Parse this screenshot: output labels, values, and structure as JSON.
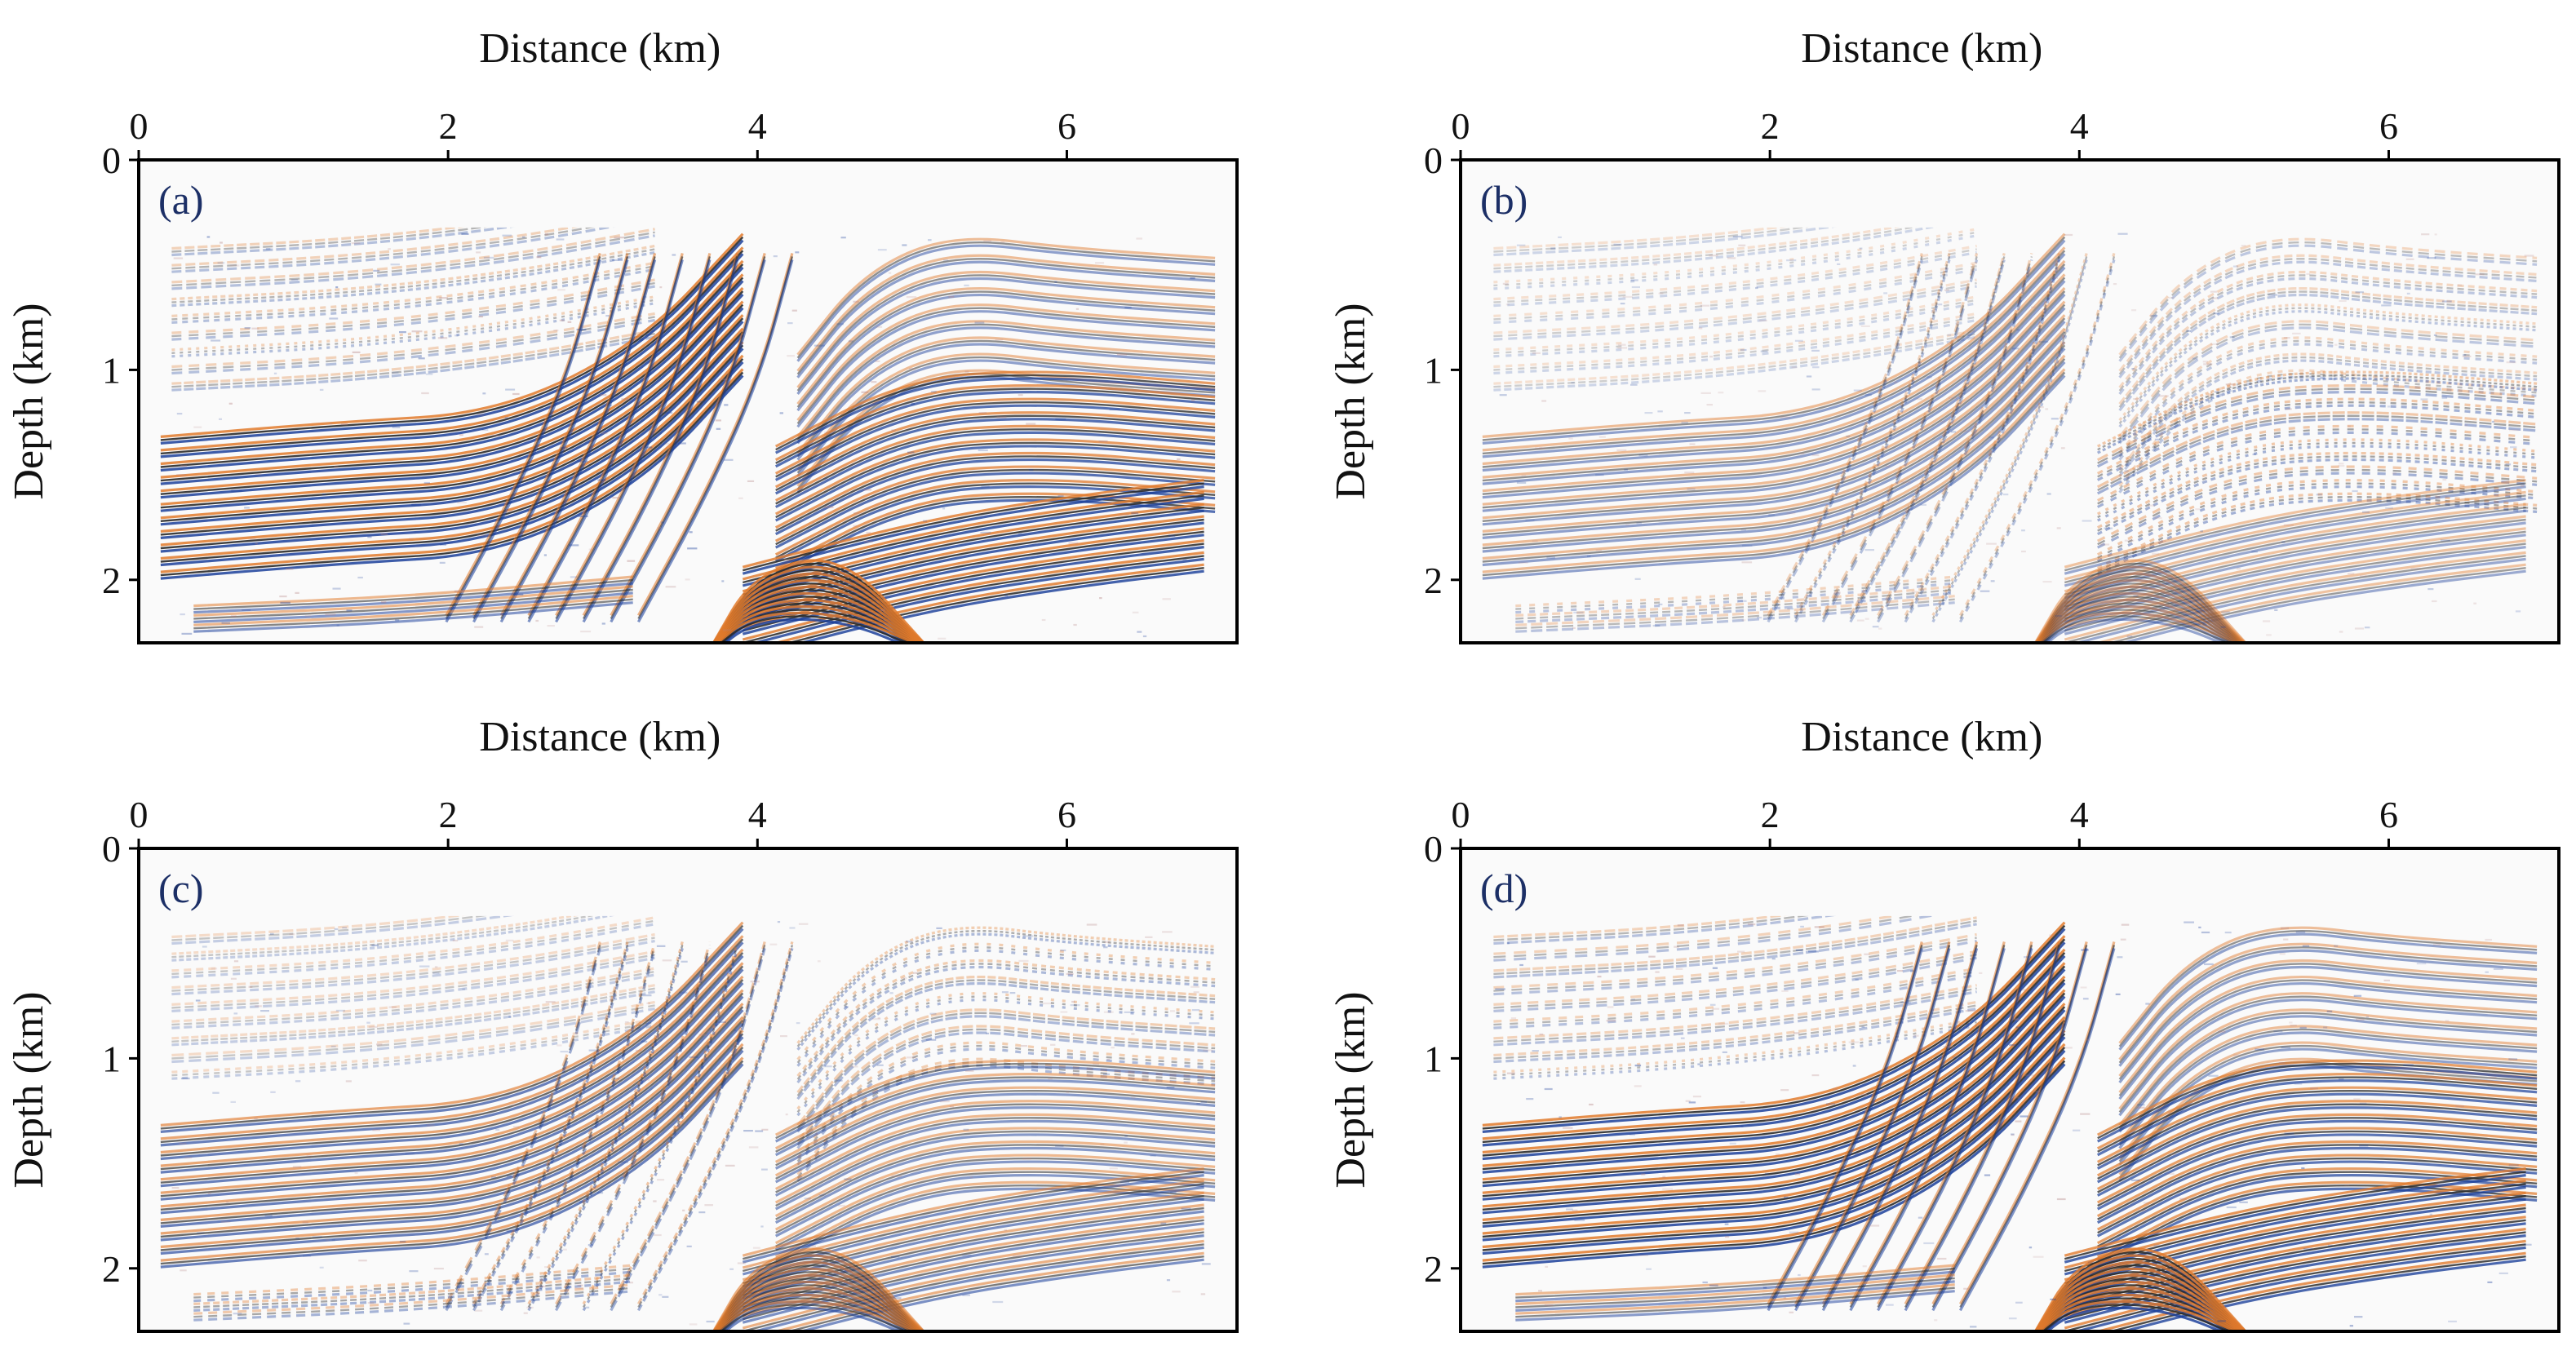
{
  "figure": {
    "colors": {
      "positive": "#e07a2c",
      "negative": "#1b3f9a",
      "dark": "#2a2a2a",
      "faint": "#b48282",
      "background": "#fafafa",
      "text": "#111111",
      "tag": "#1c2f66"
    }
  },
  "chart_data": [
    {
      "type": "heatmap",
      "panel_label": "(a)",
      "xlabel": "Distance (km)",
      "ylabel": "Depth (km)",
      "xlim": [
        0,
        7.1
      ],
      "ylim": [
        0,
        2.3
      ],
      "x_ticks": [
        "0",
        "2",
        "4",
        "6"
      ],
      "x_tick_values": [
        0,
        2,
        4,
        6
      ],
      "y_ticks": [
        "0",
        "1",
        "2"
      ],
      "y_tick_values": [
        0,
        1,
        2
      ],
      "amplitude": 1.0,
      "description_of_content": "seismic migration image"
    },
    {
      "type": "heatmap",
      "panel_label": "(b)",
      "xlabel": "Distance (km)",
      "ylabel": "Depth (km)",
      "xlim": [
        0,
        7.1
      ],
      "ylim": [
        0,
        2.3
      ],
      "x_ticks": [
        "0",
        "2",
        "4",
        "6"
      ],
      "x_tick_values": [
        0,
        2,
        4,
        6
      ],
      "y_ticks": [
        "0",
        "1",
        "2"
      ],
      "y_tick_values": [
        0,
        1,
        2
      ],
      "amplitude": 0.45
    },
    {
      "type": "heatmap",
      "panel_label": "(c)",
      "xlabel": "Distance (km)",
      "ylabel": "Depth (km)",
      "xlim": [
        0,
        7.1
      ],
      "ylim": [
        0,
        2.3
      ],
      "x_ticks": [
        "0",
        "2",
        "4",
        "6"
      ],
      "x_tick_values": [
        0,
        2,
        4,
        6
      ],
      "y_ticks": [
        "0",
        "1",
        "2"
      ],
      "y_tick_values": [
        0,
        1,
        2
      ],
      "amplitude": 0.65
    },
    {
      "type": "heatmap",
      "panel_label": "(d)",
      "xlabel": "Distance (km)",
      "ylabel": "Depth (km)",
      "xlim": [
        0,
        7.1
      ],
      "ylim": [
        0,
        2.3
      ],
      "x_ticks": [
        "0",
        "2",
        "4",
        "6"
      ],
      "x_tick_values": [
        0,
        2,
        4,
        6
      ],
      "y_ticks": [
        "0",
        "1",
        "2"
      ],
      "y_tick_values": [
        0,
        1,
        2
      ],
      "amplitude": 0.95
    }
  ]
}
